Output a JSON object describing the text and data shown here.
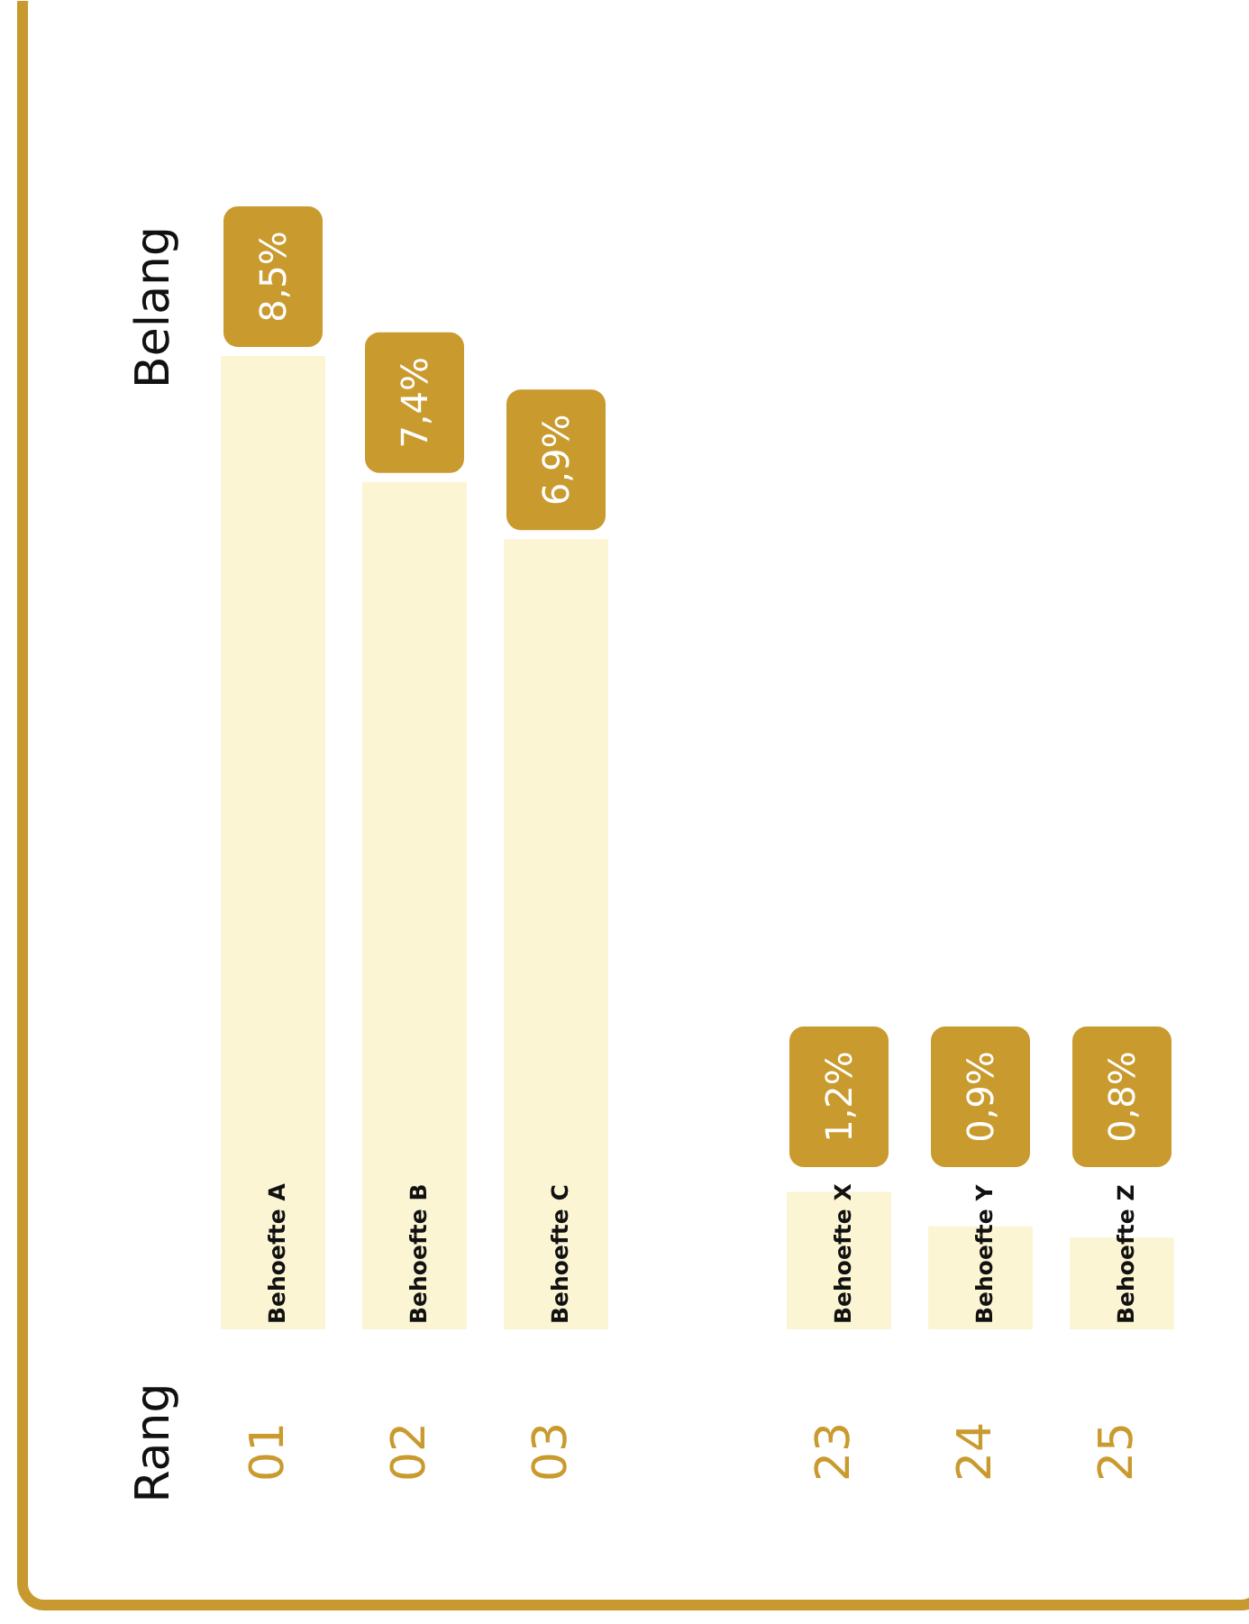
{
  "chart_data": {
    "type": "bar",
    "ylabel": "Belang",
    "categories": [
      "Behoefte A",
      "Behoefte B",
      "Behoefte C",
      "Behoefte X",
      "Behoefte Y",
      "Behoefte Z"
    ],
    "values": [
      8.5,
      7.4,
      6.9,
      1.2,
      0.9,
      0.8
    ],
    "value_labels": [
      "8,5%",
      "7,4%",
      "6,9%",
      "1,2%",
      "0,9%",
      "0,8%"
    ],
    "color": "#fbf5d4",
    "annotations": [
      "Rang",
      "01",
      "02",
      "03",
      "23",
      "24",
      "25"
    ]
  }
}
